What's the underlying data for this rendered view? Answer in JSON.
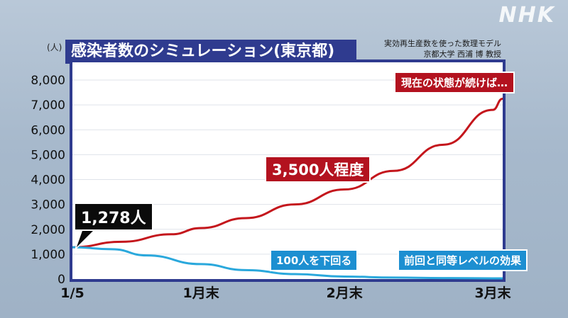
{
  "logo": "NHK",
  "title": "感染者数のシミュレーション(東京都)",
  "credit": {
    "line1": "実効再生産数を使った数理モデル",
    "line2": "京都大学 西浦 博 教授"
  },
  "chart_data": {
    "type": "line",
    "title": "感染者数のシミュレーション(東京都)",
    "y_unit": "(人)",
    "ylim": [
      0,
      8000
    ],
    "yticks": [
      "0",
      "1,000",
      "2,000",
      "3,000",
      "4,000",
      "5,000",
      "6,000",
      "7,000",
      "8,000"
    ],
    "xticks": [
      "1/5",
      "1月末",
      "2月末",
      "3月末"
    ],
    "x_tick_positions": [
      0,
      26,
      55,
      85
    ],
    "xlim": [
      0,
      87
    ],
    "series": [
      {
        "color": "#c4161c",
        "x": [
          0,
          10,
          20,
          26,
          35,
          45,
          55,
          65,
          75,
          85,
          87
        ],
        "values": [
          1278,
          1500,
          1800,
          2050,
          2450,
          3000,
          3600,
          4350,
          5400,
          6800,
          7250
        ]
      },
      {
        "color": "#2aa8dc",
        "x": [
          0,
          8,
          15,
          26,
          35,
          45,
          55,
          65,
          75,
          85,
          87
        ],
        "values": [
          1278,
          1200,
          950,
          600,
          360,
          200,
          100,
          60,
          40,
          30,
          30
        ]
      }
    ],
    "annotations": [
      {
        "text": "1,278人",
        "style": "black"
      },
      {
        "text": "3,500人程度",
        "style": "red"
      },
      {
        "text": "現在の状態が続けば…",
        "style": "red"
      },
      {
        "text": "100人を下回る",
        "style": "blue"
      },
      {
        "text": "前回と同等レベルの効果",
        "style": "blue"
      }
    ]
  }
}
